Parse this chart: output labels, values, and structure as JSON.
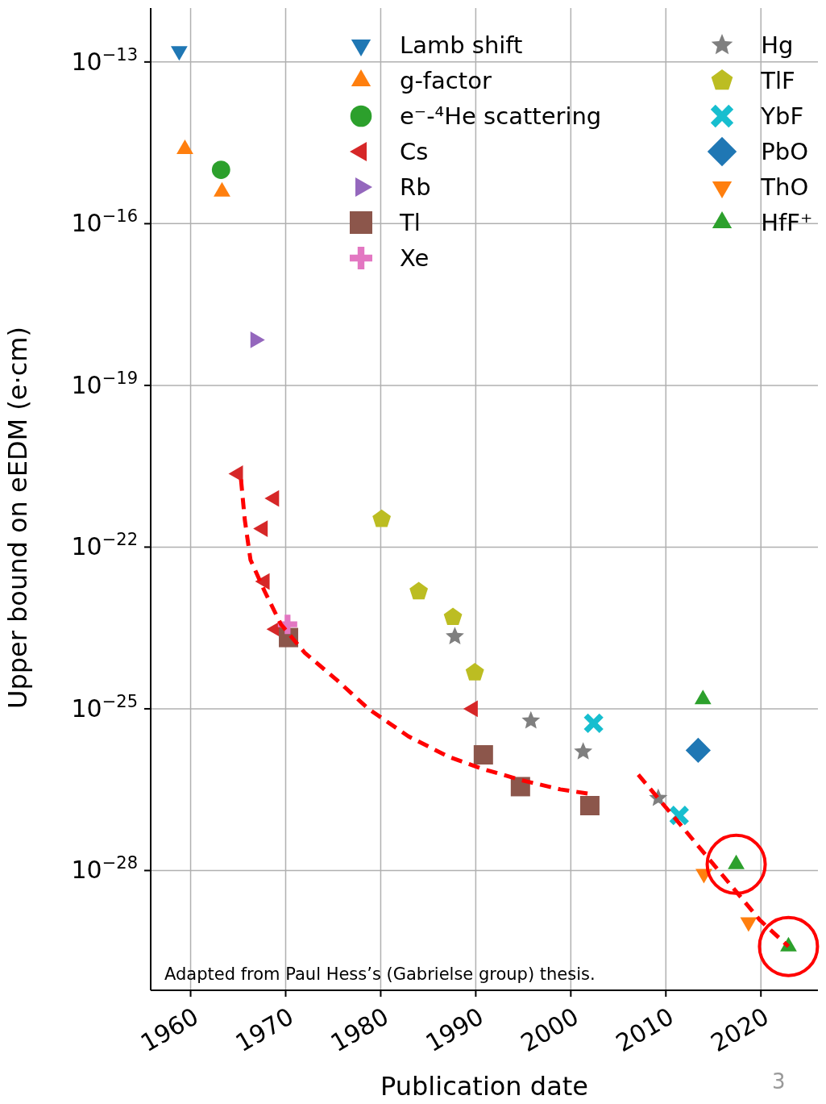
{
  "chart_data": {
    "type": "scatter",
    "xlabel": "Publication date",
    "ylabel": "Upper bound on eEDM (e·cm)",
    "xlim": [
      1955.8,
      2026
    ],
    "xticks": [
      1960,
      1970,
      1980,
      1990,
      2000,
      2010,
      2020
    ],
    "ylim": [
      6e-31,
      1e-12
    ],
    "log": "y",
    "yticks": [
      {
        "value": 1e-13,
        "label": "10$^{−13}$"
      },
      {
        "value": 1e-16,
        "label": "10$^{−16}$"
      },
      {
        "value": 1e-19,
        "label": "10$^{−19}$"
      },
      {
        "value": 1e-22,
        "label": "10$^{−22}$"
      },
      {
        "value": 1e-25,
        "label": "10$^{−25}$"
      },
      {
        "value": 1e-28,
        "label": "10$^{−28}$"
      }
    ],
    "grid": true,
    "legend": "top",
    "annotations": [
      "Adapted from Paul Hess’s (Gabrielse group) thesis.",
      "3"
    ],
    "series": [
      {
        "name": "Lamb shift",
        "marker": "triangle_down",
        "color": "#1f77b4",
        "x": [
          1958.8
        ],
        "values": [
          1.6e-13
        ]
      },
      {
        "name": "g-factor",
        "marker": "triangle",
        "color": "#ff7f0e",
        "x": [
          1959.4,
          1963.3
        ],
        "values": [
          2.4e-15,
          3.9e-16
        ]
      },
      {
        "name": "e⁻-⁴He scattering",
        "marker": "circle",
        "color": "#2ca02c",
        "x": [
          1963.2
        ],
        "values": [
          1e-15
        ]
      },
      {
        "name": "Cs",
        "marker": "triangle_left",
        "color": "#d62728",
        "x": [
          1965.0,
          1968.8,
          1967.6,
          1967.8,
          1969.0,
          1989.7
        ],
        "values": [
          2.3e-21,
          8e-22,
          2.2e-22,
          2.3e-23,
          3e-24,
          1e-25
        ]
      },
      {
        "name": "Rb",
        "marker": "triangle_right",
        "color": "#9467bd",
        "x": [
          1966.8
        ],
        "values": [
          7e-19
        ]
      },
      {
        "name": "Tl",
        "marker": "square",
        "color": "#8c564b",
        "x": [
          1970.3,
          1990.8,
          1994.7,
          2002.0
        ],
        "values": [
          2.1e-24,
          1.4e-26,
          3.6e-27,
          1.6e-27
        ]
      },
      {
        "name": "Xe",
        "marker": "cross",
        "color": "#e377c2",
        "x": [
          1970.2
        ],
        "values": [
          3.7e-24
        ]
      },
      {
        "name": "Hg",
        "marker": "star",
        "color": "#7f7f7f",
        "x": [
          1987.8,
          1995.8,
          2001.3,
          2009.2
        ],
        "values": [
          2.2e-24,
          6e-26,
          1.6e-26,
          2.2e-27
        ]
      },
      {
        "name": "TlF",
        "color": "#bcbd22",
        "x": [
          1980.1,
          1984.0,
          1987.6,
          1989.9
        ],
        "values": [
          3.3e-22,
          1.5e-23,
          5e-24,
          4.7e-25
        ]
      },
      {
        "name": "YbF",
        "marker": "x",
        "color": "#17becf",
        "x": [
          2002.4,
          2011.4
        ],
        "values": [
          5.4e-26,
          1.05e-27
        ]
      },
      {
        "name": "PbO",
        "marker": "diamond",
        "color": "#1f77b4",
        "x": [
          2013.4
        ],
        "values": [
          1.7e-26
        ]
      },
      {
        "name": "ThO",
        "marker": "triangle_down",
        "color": "#ff7f0e",
        "x": [
          2014.0,
          2018.7
        ],
        "values": [
          8.7e-29,
          1.1e-29
        ]
      },
      {
        "name": "HfF⁺",
        "marker": "triangle",
        "color": "#2ca02c",
        "x": [
          2013.9,
          2017.4,
          2022.9
        ],
        "values": [
          1.5e-25,
          1.3e-28,
          3.9e-30
        ]
      },
      {
        "type": "line",
        "color": "#ff0000",
        "line_style": "dashed",
        "marker": "none",
        "x": [
          1965.3,
          1965.7,
          1966.3,
          1967.8,
          1969.5,
          1972.0,
          1975.4,
          1978.7,
          1982.9,
          1987.1,
          1990.5,
          1994.7,
          1998.9,
          2002.3
        ],
        "values": [
          1.8e-21,
          3.2e-22,
          5.8e-23,
          1.5e-23,
          3.7e-24,
          1.1e-24,
          3.4e-25,
          1e-25,
          3.1e-26,
          1.3e-26,
          7.9e-27,
          4.8e-27,
          3.2e-27,
          2.6e-27
        ]
      },
      {
        "type": "line",
        "color": "#ff0000",
        "line_style": "dashed",
        "marker": "none",
        "x": [
          2007.1,
          2011.5,
          2015.7,
          2019.9,
          2022.9
        ],
        "values": [
          6e-27,
          7.2e-28,
          9.3e-29,
          1.2e-29,
          3.9e-30
        ]
      }
    ]
  }
}
